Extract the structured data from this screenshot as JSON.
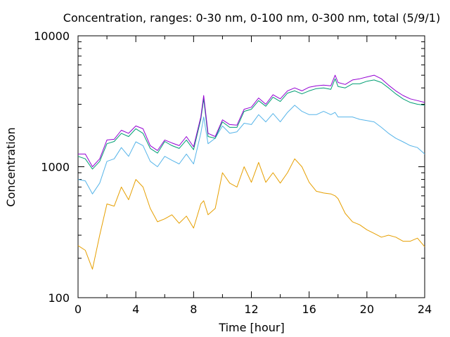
{
  "chart_data": {
    "type": "line",
    "title": "Concentration, ranges: 0-30 nm, 0-100 nm, 0-300 nm, total (5/9/1)",
    "xlabel": "Time [hour]",
    "ylabel": "Concentration",
    "xlim": [
      0,
      24
    ],
    "ylim": [
      100,
      10000
    ],
    "yscale": "log",
    "grid": false,
    "legend": "none",
    "x_ticks": [
      0,
      4,
      8,
      12,
      16,
      20,
      24
    ],
    "y_ticks": [
      100,
      1000,
      10000
    ],
    "x": [
      0,
      0.5,
      1,
      1.5,
      2,
      2.5,
      3,
      3.5,
      4,
      4.5,
      5,
      5.5,
      6,
      6.5,
      7,
      7.5,
      8,
      8.5,
      8.7,
      9,
      9.5,
      10,
      10.5,
      11,
      11.5,
      12,
      12.5,
      13,
      13.5,
      14,
      14.5,
      15,
      15.5,
      16,
      16.5,
      17,
      17.5,
      17.8,
      18,
      18.5,
      19,
      19.5,
      20,
      20.5,
      21,
      21.5,
      22,
      22.5,
      23,
      23.5,
      24
    ],
    "series": [
      {
        "color": "#e69f00",
        "values": [
          250,
          230,
          165,
          300,
          520,
          500,
          700,
          560,
          800,
          700,
          480,
          380,
          400,
          430,
          370,
          420,
          340,
          520,
          550,
          430,
          480,
          900,
          750,
          700,
          1000,
          760,
          1080,
          760,
          900,
          750,
          900,
          1150,
          1000,
          760,
          650,
          630,
          620,
          600,
          570,
          440,
          380,
          360,
          330,
          310,
          290,
          300,
          290,
          270,
          270,
          285,
          245
        ]
      },
      {
        "color": "#56b4e9",
        "values": [
          800,
          780,
          620,
          750,
          1100,
          1150,
          1400,
          1200,
          1550,
          1450,
          1100,
          1000,
          1200,
          1120,
          1050,
          1250,
          1050,
          1800,
          2400,
          1500,
          1650,
          2050,
          1800,
          1850,
          2150,
          2100,
          2500,
          2200,
          2550,
          2200,
          2600,
          2950,
          2650,
          2500,
          2500,
          2650,
          2500,
          2600,
          2400,
          2400,
          2400,
          2300,
          2250,
          2200,
          2000,
          1800,
          1650,
          1550,
          1450,
          1400,
          1250
        ]
      },
      {
        "color": "#009e73",
        "values": [
          1200,
          1150,
          960,
          1100,
          1500,
          1560,
          1800,
          1700,
          1950,
          1800,
          1380,
          1270,
          1560,
          1450,
          1380,
          1600,
          1350,
          2300,
          3300,
          1700,
          1650,
          2200,
          2000,
          2000,
          2650,
          2750,
          3200,
          2900,
          3400,
          3150,
          3650,
          3800,
          3600,
          3800,
          3950,
          4000,
          3900,
          4700,
          4100,
          4000,
          4300,
          4300,
          4500,
          4600,
          4400,
          4000,
          3600,
          3300,
          3100,
          3000,
          2950
        ]
      },
      {
        "color": "#9400d3",
        "values": [
          1250,
          1250,
          1000,
          1150,
          1600,
          1620,
          1900,
          1800,
          2050,
          1950,
          1450,
          1330,
          1600,
          1520,
          1450,
          1700,
          1420,
          2400,
          3500,
          1800,
          1700,
          2280,
          2100,
          2080,
          2750,
          2850,
          3350,
          3000,
          3550,
          3300,
          3800,
          4000,
          3800,
          4050,
          4150,
          4200,
          4150,
          5000,
          4400,
          4250,
          4600,
          4700,
          4850,
          5000,
          4700,
          4200,
          3800,
          3500,
          3300,
          3200,
          3100
        ]
      }
    ]
  }
}
